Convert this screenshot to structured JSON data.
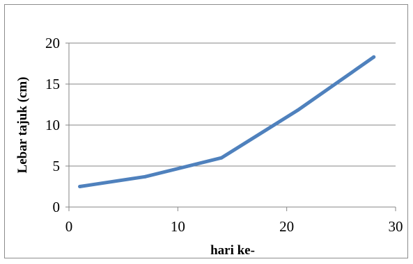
{
  "chart_data": {
    "type": "line",
    "title": "",
    "xlabel": "hari ke-",
    "ylabel": "Lebar tajuk (cm)",
    "xlim": [
      0,
      30
    ],
    "ylim": [
      0,
      20
    ],
    "x_ticks": [
      0,
      10,
      20,
      30
    ],
    "y_ticks": [
      0,
      5,
      10,
      15,
      20
    ],
    "x_tick_labels": [
      "0",
      "10",
      "20",
      "30"
    ],
    "y_tick_labels": [
      "0",
      "5",
      "10",
      "15",
      "20"
    ],
    "grid": "horizontal",
    "legend": "none",
    "series": [
      {
        "color": "#4f81bd",
        "x": [
          1,
          7,
          14,
          21,
          28
        ],
        "values": [
          2.5,
          3.7,
          6.0,
          11.8,
          18.3
        ]
      }
    ]
  }
}
